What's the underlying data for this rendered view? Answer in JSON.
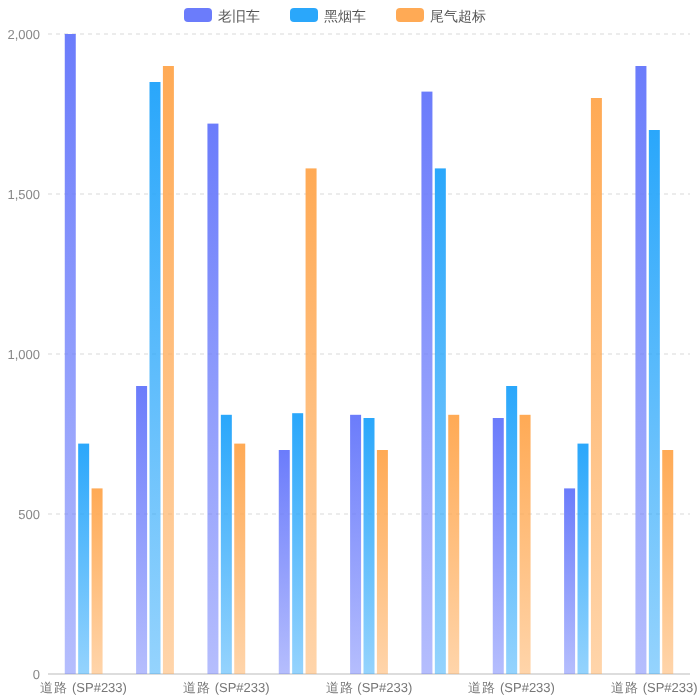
{
  "chart_data": {
    "type": "bar",
    "categories": [
      "道路 (SP#233)",
      null,
      "道路 (SP#233)",
      null,
      "道路 (SP#233)",
      null,
      "道路 (SP#233)",
      null,
      "道路 (SP#233)"
    ],
    "series": [
      {
        "name": "老旧车",
        "color": "#6b7cfb",
        "values": [
          2000,
          900,
          1720,
          700,
          810,
          1820,
          800,
          580,
          1900
        ]
      },
      {
        "name": "黑烟车",
        "color": "#2aa7fb",
        "values": [
          720,
          1850,
          810,
          815,
          800,
          1580,
          900,
          720,
          1700
        ]
      },
      {
        "name": "尾气超标",
        "color": "#ffaa55",
        "values": [
          580,
          1900,
          720,
          1580,
          700,
          810,
          810,
          1800,
          700
        ]
      }
    ],
    "ylim": [
      0,
      2000
    ],
    "yticks": [
      0,
      500,
      {
        "value": 1000,
        "label": "1,000"
      },
      {
        "value": 1500,
        "label": "1,500"
      },
      {
        "value": 2000,
        "label": "2,000"
      }
    ],
    "grid": "y",
    "legend": "top"
  }
}
